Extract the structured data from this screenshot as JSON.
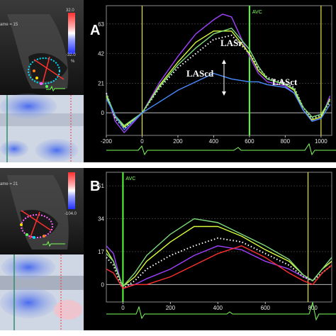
{
  "panels": [
    {
      "id": "A",
      "letter": "A",
      "avc_label": "AVC",
      "annotations": [
        "LASr",
        "LAScd",
        "LASct"
      ],
      "echo_readout": "ame = 15",
      "scale_top": "32.0",
      "scale_mid": "-32.0",
      "scale_unit": "%"
    },
    {
      "id": "B",
      "letter": "B",
      "avc_label": "AVC",
      "echo_readout": "ame = 21",
      "scale_top": "",
      "scale_mid": "-104.0",
      "scale_unit": ""
    }
  ],
  "chart_data": [
    {
      "type": "line",
      "panel": "A",
      "x_ticks": [
        -200,
        0,
        200,
        400,
        600,
        800,
        1000
      ],
      "y_ticks": [
        0,
        21,
        42,
        63
      ],
      "xlim": [
        -200,
        1060
      ],
      "ylim": [
        -16,
        76
      ],
      "avc_x": 600,
      "marker_lines_x": [
        0,
        1000
      ],
      "series": [
        {
          "color": "#a040ff",
          "x": [
            -200,
            -150,
            -100,
            0,
            100,
            200,
            300,
            400,
            450,
            500,
            600,
            650,
            700,
            800,
            850,
            900,
            950,
            1000,
            1050
          ],
          "y": [
            14,
            -6,
            -14,
            0,
            22,
            40,
            56,
            66,
            70,
            68,
            40,
            28,
            22,
            19,
            14,
            2,
            -6,
            -4,
            12
          ]
        },
        {
          "color": "#ffffff",
          "x": [
            -200,
            -150,
            -100,
            0,
            100,
            200,
            300,
            400,
            500,
            600,
            650,
            700,
            800,
            850,
            900,
            950,
            1000,
            1050
          ],
          "y": [
            14,
            -4,
            -11,
            0,
            18,
            32,
            42,
            52,
            55,
            42,
            32,
            25,
            21,
            18,
            4,
            -4,
            -2,
            8
          ]
        },
        {
          "color": "#d8ff3a",
          "x": [
            -200,
            -150,
            -100,
            0,
            100,
            200,
            300,
            400,
            500,
            600,
            650,
            700,
            800,
            850,
            900,
            950,
            1000,
            1050
          ],
          "y": [
            12,
            -3,
            -10,
            0,
            20,
            36,
            50,
            58,
            58,
            42,
            30,
            24,
            20,
            16,
            2,
            -5,
            -3,
            10
          ]
        },
        {
          "color": "#7ddc7d",
          "x": [
            -200,
            -150,
            -100,
            0,
            100,
            200,
            300,
            400,
            500,
            600,
            650,
            700,
            800,
            850,
            900,
            950,
            1000,
            1050
          ],
          "y": [
            13,
            -2,
            -9,
            0,
            19,
            34,
            46,
            56,
            60,
            45,
            33,
            24,
            20,
            17,
            4,
            -3,
            -1,
            9
          ]
        },
        {
          "color": "#4a8cff",
          "x": [
            -200,
            -150,
            -100,
            0,
            100,
            200,
            300,
            400,
            500,
            600,
            650,
            700,
            800,
            850,
            900,
            950,
            1000,
            1050
          ],
          "y": [
            10,
            -2,
            -12,
            0,
            8,
            16,
            22,
            28,
            24,
            22,
            22,
            20,
            18,
            14,
            2,
            -6,
            -4,
            6
          ]
        }
      ]
    },
    {
      "type": "line",
      "panel": "B",
      "x_ticks": [
        0,
        200,
        400,
        600,
        800
      ],
      "y_ticks": [
        0,
        17,
        34,
        51
      ],
      "xlim": [
        -70,
        880
      ],
      "ylim": [
        -9,
        58
      ],
      "avc_x": 0,
      "marker_lines_x": [
        0,
        780
      ],
      "series": [
        {
          "color": "#a040ff",
          "x": [
            -70,
            -40,
            -10,
            0,
            50,
            100,
            200,
            300,
            400,
            500,
            600,
            700,
            760,
            800,
            840,
            880
          ],
          "y": [
            20,
            16,
            2,
            -2,
            0,
            3,
            8,
            15,
            20,
            18,
            12,
            8,
            4,
            2,
            8,
            12
          ]
        },
        {
          "color": "#ffffff",
          "x": [
            -70,
            -40,
            -10,
            0,
            50,
            100,
            200,
            300,
            400,
            500,
            600,
            700,
            760,
            800,
            840,
            880
          ],
          "y": [
            14,
            10,
            0,
            -2,
            2,
            8,
            15,
            20,
            24,
            22,
            16,
            10,
            4,
            2,
            6,
            10
          ]
        },
        {
          "color": "#d8ff3a",
          "x": [
            -70,
            -40,
            -10,
            0,
            50,
            100,
            200,
            300,
            400,
            500,
            600,
            700,
            760,
            800,
            840,
            880
          ],
          "y": [
            18,
            12,
            2,
            -1,
            4,
            12,
            22,
            30,
            30,
            25,
            18,
            12,
            5,
            2,
            8,
            12
          ]
        },
        {
          "color": "#7ddc7d",
          "x": [
            -70,
            -40,
            -10,
            0,
            50,
            100,
            200,
            300,
            400,
            500,
            600,
            700,
            760,
            800,
            840,
            880
          ],
          "y": [
            16,
            12,
            2,
            -1,
            6,
            15,
            26,
            34,
            32,
            26,
            20,
            13,
            5,
            2,
            8,
            14
          ]
        },
        {
          "color": "#ff3030",
          "x": [
            -70,
            -40,
            -10,
            0,
            50,
            100,
            200,
            300,
            400,
            500,
            600,
            700,
            760,
            800,
            840,
            880
          ],
          "y": [
            8,
            6,
            0,
            -2,
            0,
            0,
            4,
            10,
            16,
            20,
            14,
            6,
            2,
            0,
            6,
            10
          ]
        }
      ]
    }
  ]
}
